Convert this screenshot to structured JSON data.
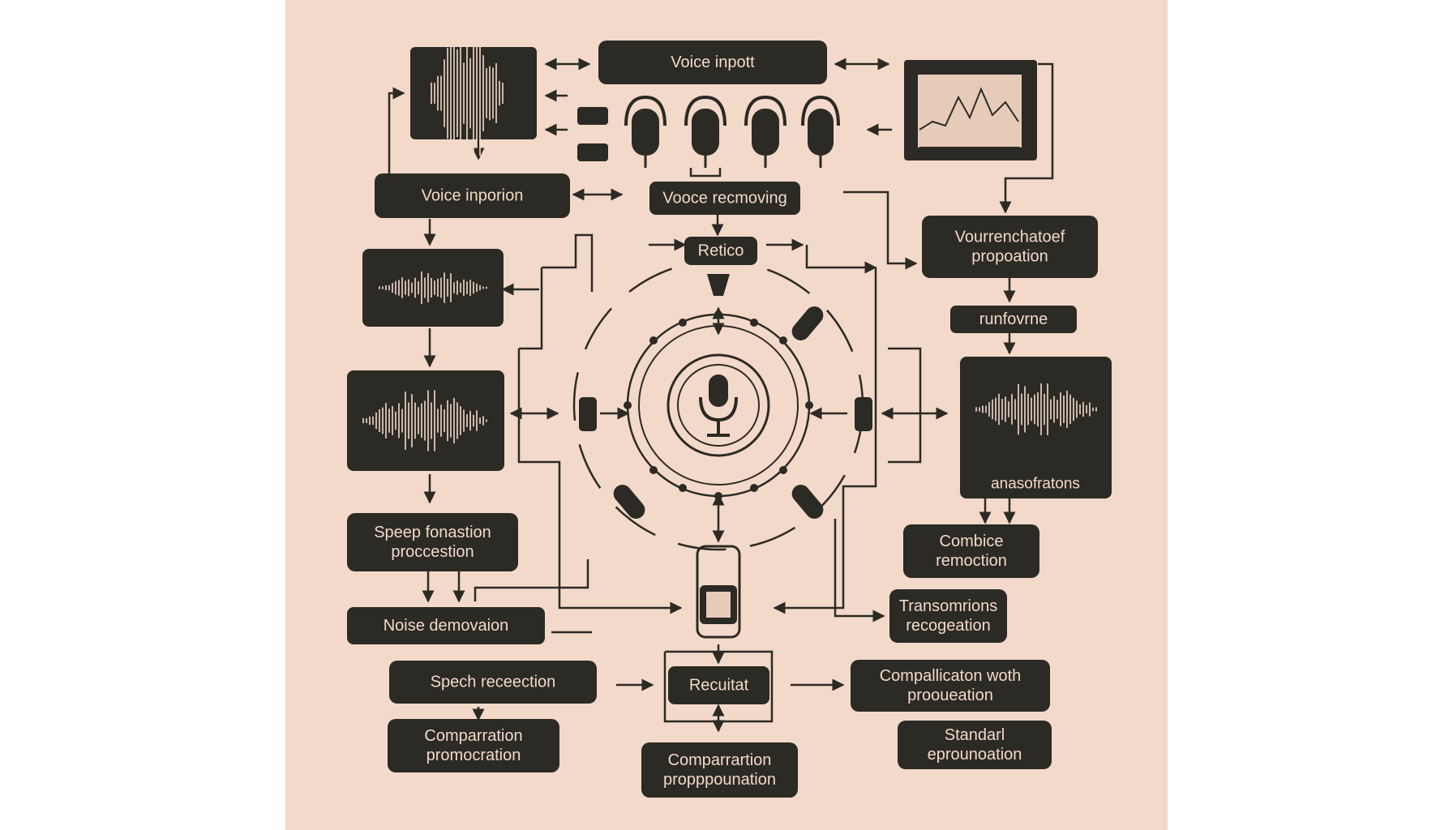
{
  "nodes": [
    {
      "id": "voice-input",
      "lines": [
        "Voice inpott"
      ]
    },
    {
      "id": "voice-inporion",
      "lines": [
        "Voice inporion"
      ]
    },
    {
      "id": "voice-recmoving",
      "lines": [
        "Voоce recmoving"
      ]
    },
    {
      "id": "retico",
      "lines": [
        "Retico"
      ]
    },
    {
      "id": "vourrenchatoef",
      "lines": [
        "Vourrenchatoef",
        "propoation"
      ]
    },
    {
      "id": "runfovrne",
      "lines": [
        "runfovrne"
      ]
    },
    {
      "id": "anasofratons",
      "lines": [
        "anasofratons"
      ]
    },
    {
      "id": "combice",
      "lines": [
        "Combice",
        "remoction"
      ]
    },
    {
      "id": "speep-fonastion",
      "lines": [
        "Speep fonastion",
        "proccestion"
      ]
    },
    {
      "id": "noise-demovaion",
      "lines": [
        "Noise demovaion"
      ]
    },
    {
      "id": "transomrions",
      "lines": [
        "Transomrions",
        "recogeation"
      ]
    },
    {
      "id": "spech-recection",
      "lines": [
        "Spech receection"
      ]
    },
    {
      "id": "recuitat",
      "lines": [
        "Recuitat"
      ]
    },
    {
      "id": "compallicaton",
      "lines": [
        "Compallicaton woth",
        "prooueation"
      ]
    },
    {
      "id": "comparration-left",
      "lines": [
        "Comparration",
        "promocration"
      ]
    },
    {
      "id": "comparration-bottom",
      "lines": [
        "Comparrartion",
        "propppounation"
      ]
    },
    {
      "id": "standarl",
      "lines": [
        "Standarl",
        "eprounoation"
      ]
    }
  ],
  "icons": [
    "waveform-icon",
    "line-chart-icon",
    "microphone-icon",
    "speaker-icon",
    "connector-icon",
    "chip-icon",
    "funnel-icon"
  ],
  "colors": {
    "paper": "#f3d9c9",
    "ink": "#2b2a24"
  }
}
